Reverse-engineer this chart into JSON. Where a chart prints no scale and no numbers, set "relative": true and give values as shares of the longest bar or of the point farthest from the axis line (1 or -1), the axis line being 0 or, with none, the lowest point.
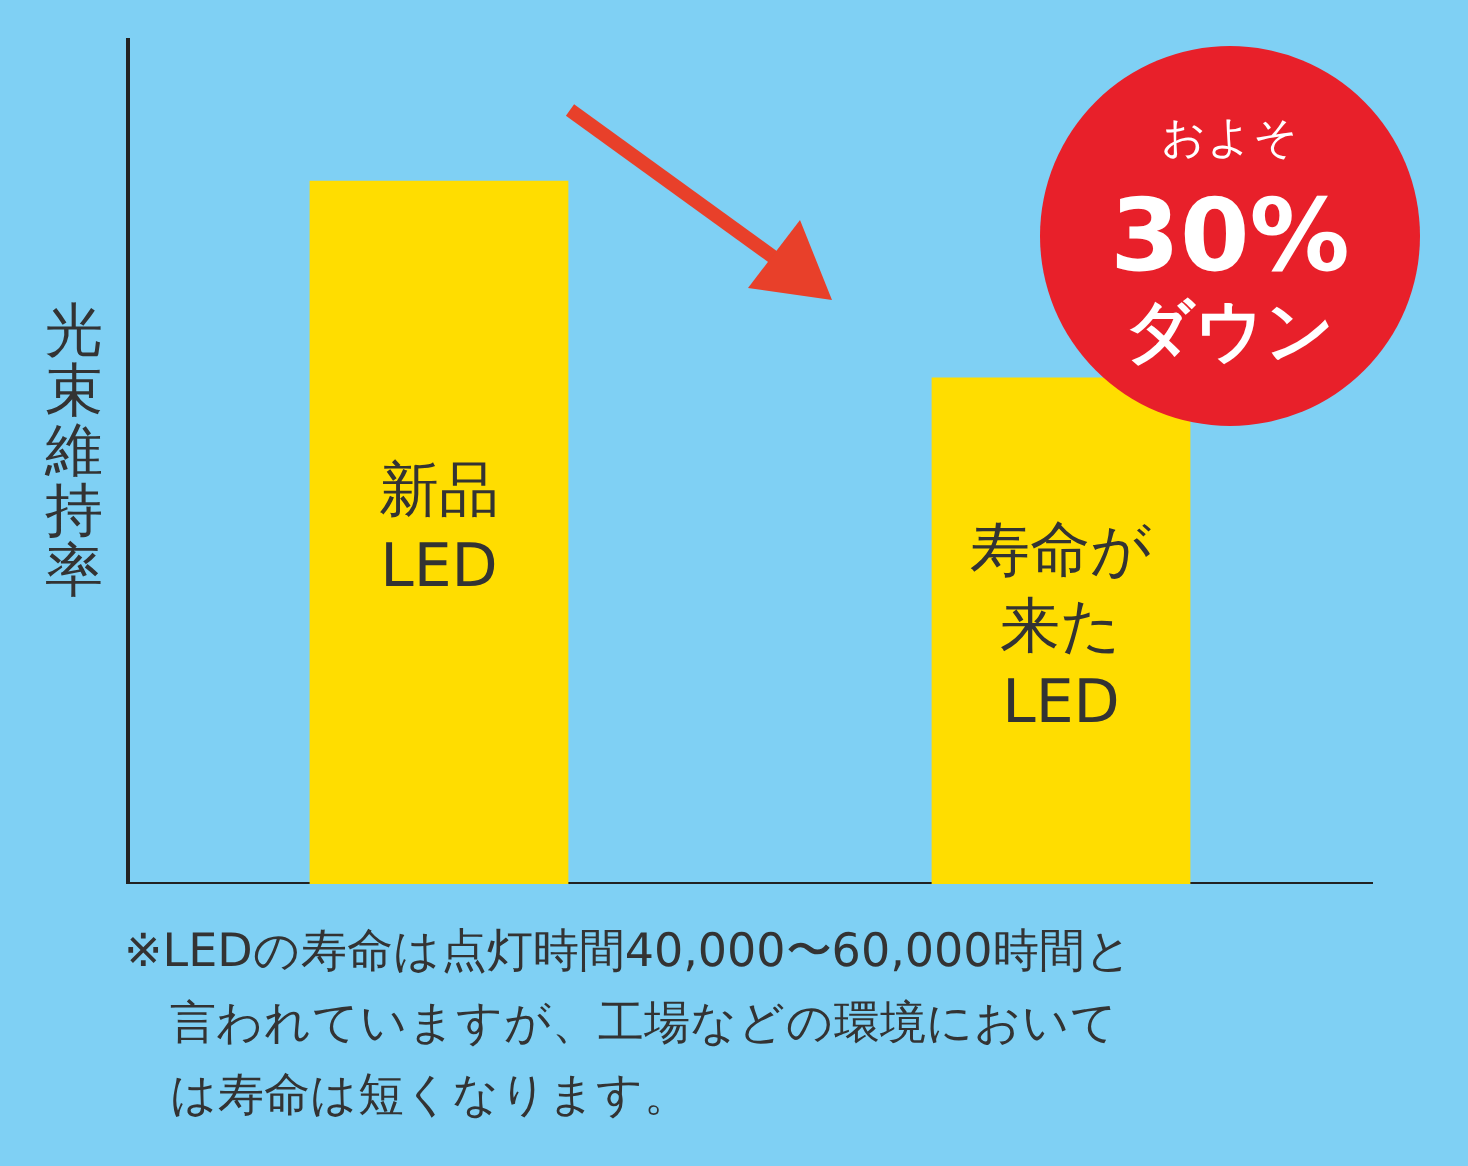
{
  "chart_data": {
    "type": "bar",
    "relative": true,
    "ylabel": "光束維持率",
    "categories": [
      "新品LED",
      "寿命が来たLED"
    ],
    "values": [
      1,
      0.72
    ],
    "color": "#ffdd00",
    "grid": false,
    "legend": false,
    "annotations": [
      "およそ",
      "30%",
      "ダウン",
      "※LEDの寿命は点灯時間40,000〜60,000時間と言われていますが、工場などの環境においては寿命は短くなります。"
    ]
  }
}
